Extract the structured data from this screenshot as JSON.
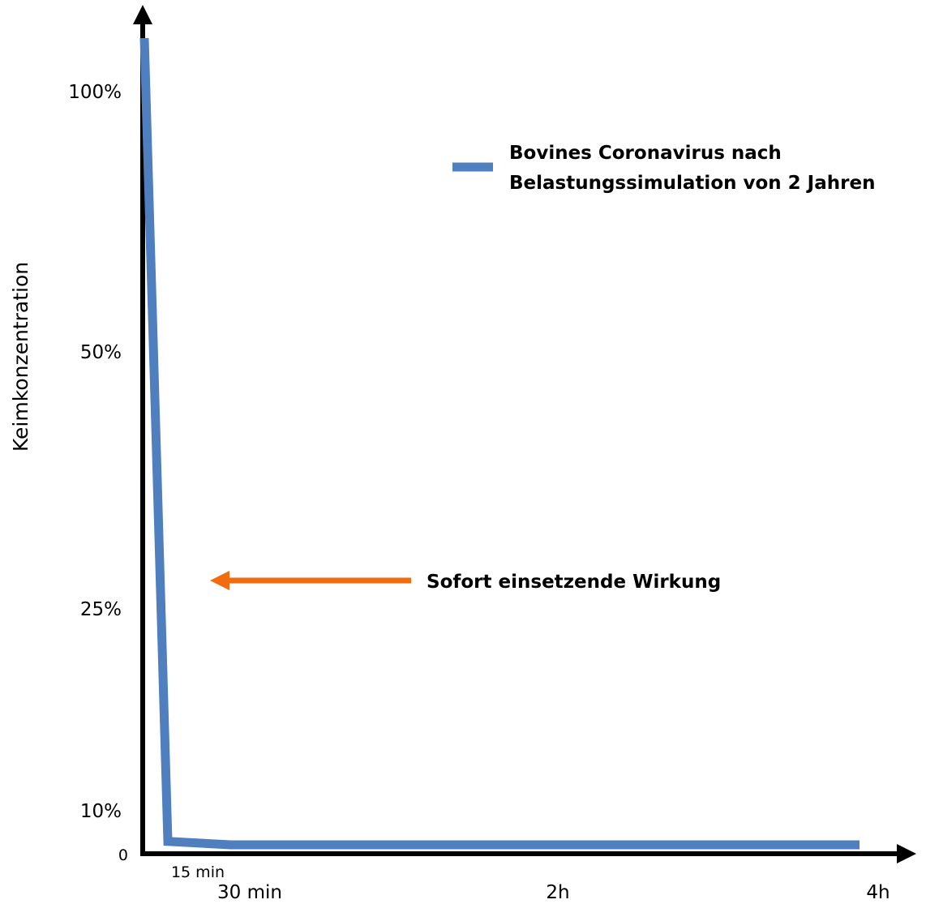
{
  "chart_data": {
    "type": "line",
    "ylabel": "Keimkonzentration",
    "xlabel": "",
    "y_ticks": [
      {
        "label": "100%",
        "value": 100
      },
      {
        "label": "50%",
        "value": 50
      },
      {
        "label": "25%",
        "value": 25
      },
      {
        "label": "10%",
        "value": 10
      },
      {
        "label": "0",
        "value": 0
      }
    ],
    "x_ticks": [
      {
        "label": "15 min",
        "minutes": 15
      },
      {
        "label": "30 min",
        "minutes": 30
      },
      {
        "label": "2h",
        "minutes": 120
      },
      {
        "label": "4h",
        "minutes": 240
      }
    ],
    "series": [
      {
        "name": "Bovines Coronavirus nach Belastungssimulation von 2 Jahren",
        "color": "#4f7fbf",
        "points": [
          {
            "minutes": 0,
            "value": 105
          },
          {
            "minutes": 15,
            "value": 1
          },
          {
            "minutes": 30,
            "value": 0
          },
          {
            "minutes": 240,
            "value": 0
          }
        ]
      }
    ],
    "legend": {
      "line1": "Bovines Coronavirus nach",
      "line2": "Belastungssimulation von 2 Jahren",
      "position": "top-right"
    },
    "annotation": {
      "text": "Sofort einsetzende Wirkung",
      "arrow_color": "#f26b0f"
    },
    "grid": false
  }
}
